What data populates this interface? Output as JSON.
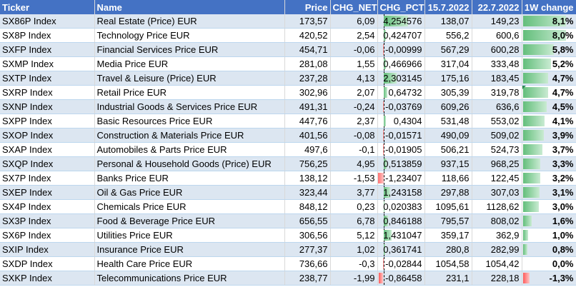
{
  "headers": [
    "Ticker",
    "Name",
    "Price",
    "CHG_NET",
    "CHG_PCT_",
    "15.7.2022",
    "22.7.2022",
    "1W change"
  ],
  "rows": [
    {
      "ticker": "SX86P Index",
      "name": "Real Estate (Price) EUR",
      "price": "173,57",
      "chg_net": "6,09",
      "chg_pct": "4,254576",
      "pct_val": 4.254576,
      "d1": "138,07",
      "d2": "149,23",
      "w": "8,1%",
      "w_val": 8.1
    },
    {
      "ticker": "SX8P Index",
      "name": "Technology Price EUR",
      "price": "420,52",
      "chg_net": "2,54",
      "chg_pct": "0,424707",
      "pct_val": 0.424707,
      "d1": "556,2",
      "d2": "600,6",
      "w": "8,0%",
      "w_val": 8.0
    },
    {
      "ticker": "SXFP Index",
      "name": "Financial Services Price EUR",
      "price": "454,71",
      "chg_net": "-0,06",
      "chg_pct": "-0,00999",
      "pct_val": -0.00999,
      "d1": "567,29",
      "d2": "600,28",
      "w": "5,8%",
      "w_val": 5.8
    },
    {
      "ticker": "SXMP Index",
      "name": "Media Price EUR",
      "price": "281,08",
      "chg_net": "1,55",
      "chg_pct": "0,466966",
      "pct_val": 0.466966,
      "d1": "317,04",
      "d2": "333,48",
      "w": "5,2%",
      "w_val": 5.2
    },
    {
      "ticker": "SXTP Index",
      "name": "Travel & Leisure (Price) EUR",
      "price": "237,28",
      "chg_net": "4,13",
      "chg_pct": "2,303145",
      "pct_val": 2.303145,
      "d1": "175,16",
      "d2": "183,45",
      "w": "4,7%",
      "w_val": 4.7
    },
    {
      "ticker": "SXRP Index",
      "name": "Retail Price EUR",
      "price": "302,96",
      "chg_net": "2,07",
      "chg_pct": "0,64732",
      "pct_val": 0.64732,
      "d1": "305,39",
      "d2": "319,78",
      "w": "4,7%",
      "w_val": 4.7,
      "marker": true
    },
    {
      "ticker": "SXNP Index",
      "name": "Industrial Goods & Services Price EUR",
      "price": "491,31",
      "chg_net": "-0,24",
      "chg_pct": "-0,03769",
      "pct_val": -0.03769,
      "d1": "609,26",
      "d2": "636,6",
      "w": "4,5%",
      "w_val": 4.5
    },
    {
      "ticker": "SXPP Index",
      "name": "Basic Resources Price EUR",
      "price": "447,76",
      "chg_net": "2,37",
      "chg_pct": "0,4304",
      "pct_val": 0.4304,
      "d1": "531,48",
      "d2": "553,02",
      "w": "4,1%",
      "w_val": 4.1
    },
    {
      "ticker": "SXOP Index",
      "name": "Construction & Materials Price EUR",
      "price": "401,56",
      "chg_net": "-0,08",
      "chg_pct": "-0,01571",
      "pct_val": -0.01571,
      "d1": "490,09",
      "d2": "509,02",
      "w": "3,9%",
      "w_val": 3.9
    },
    {
      "ticker": "SXAP Index",
      "name": "Automobiles & Parts Price EUR",
      "price": "497,6",
      "chg_net": "-0,1",
      "chg_pct": "-0,01905",
      "pct_val": -0.01905,
      "d1": "506,21",
      "d2": "524,73",
      "w": "3,7%",
      "w_val": 3.7
    },
    {
      "ticker": "SXQP Index",
      "name": "Personal & Household Goods (Price) EUR",
      "price": "756,25",
      "chg_net": "4,95",
      "chg_pct": "0,513859",
      "pct_val": 0.513859,
      "d1": "937,15",
      "d2": "968,25",
      "w": "3,3%",
      "w_val": 3.3
    },
    {
      "ticker": "SX7P Index",
      "name": "Banks Price EUR",
      "price": "138,12",
      "chg_net": "-1,53",
      "chg_pct": "-1,23407",
      "pct_val": -1.23407,
      "d1": "118,66",
      "d2": "122,45",
      "w": "3,2%",
      "w_val": 3.2
    },
    {
      "ticker": "SXEP Index",
      "name": "Oil & Gas Price EUR",
      "price": "323,44",
      "chg_net": "3,77",
      "chg_pct": "1,243158",
      "pct_val": 1.243158,
      "d1": "297,88",
      "d2": "307,03",
      "w": "3,1%",
      "w_val": 3.1
    },
    {
      "ticker": "SX4P Index",
      "name": "Chemicals Price EUR",
      "price": "848,12",
      "chg_net": "0,23",
      "chg_pct": "0,020383",
      "pct_val": 0.020383,
      "d1": "1095,61",
      "d2": "1128,62",
      "w": "3,0%",
      "w_val": 3.0
    },
    {
      "ticker": "SX3P Index",
      "name": "Food & Beverage Price EUR",
      "price": "656,55",
      "chg_net": "6,78",
      "chg_pct": "0,846188",
      "pct_val": 0.846188,
      "d1": "795,57",
      "d2": "808,02",
      "w": "1,6%",
      "w_val": 1.6
    },
    {
      "ticker": "SX6P Index",
      "name": "Utilities Price EUR",
      "price": "306,56",
      "chg_net": "5,12",
      "chg_pct": "1,431047",
      "pct_val": 1.431047,
      "d1": "359,17",
      "d2": "362,9",
      "w": "1,0%",
      "w_val": 1.0
    },
    {
      "ticker": "SXIP Index",
      "name": "Insurance Price EUR",
      "price": "277,37",
      "chg_net": "1,02",
      "chg_pct": "0,361741",
      "pct_val": 0.361741,
      "d1": "280,8",
      "d2": "282,99",
      "w": "0,8%",
      "w_val": 0.8
    },
    {
      "ticker": "SXDP Index",
      "name": "Health Care Price EUR",
      "price": "736,66",
      "chg_net": "-0,3",
      "chg_pct": "-0,02844",
      "pct_val": -0.02844,
      "d1": "1054,58",
      "d2": "1054,42",
      "w": "0,0%",
      "w_val": 0.0
    },
    {
      "ticker": "SXKP Index",
      "name": "Telecommunications Price EUR",
      "price": "238,77",
      "chg_net": "-1,99",
      "chg_pct": "-0,86458",
      "pct_val": -0.86458,
      "d1": "231,1",
      "d2": "228,18",
      "w": "-1,3%",
      "w_val": -1.3
    }
  ],
  "colors": {
    "header_bg": "#4472c4",
    "band": "#dce6f1",
    "pos_bar": "#63be7b",
    "neg_bar": "#ff5b5b"
  }
}
